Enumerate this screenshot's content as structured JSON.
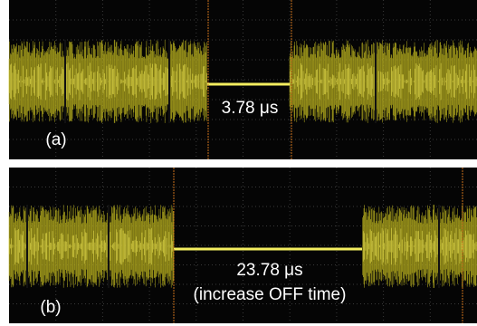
{
  "panels": [
    {
      "label": "(a)",
      "measurement": "3.78 μs"
    },
    {
      "label": "(b)",
      "measurement": "23.78 μs",
      "note": "(increase OFF time)"
    }
  ]
}
